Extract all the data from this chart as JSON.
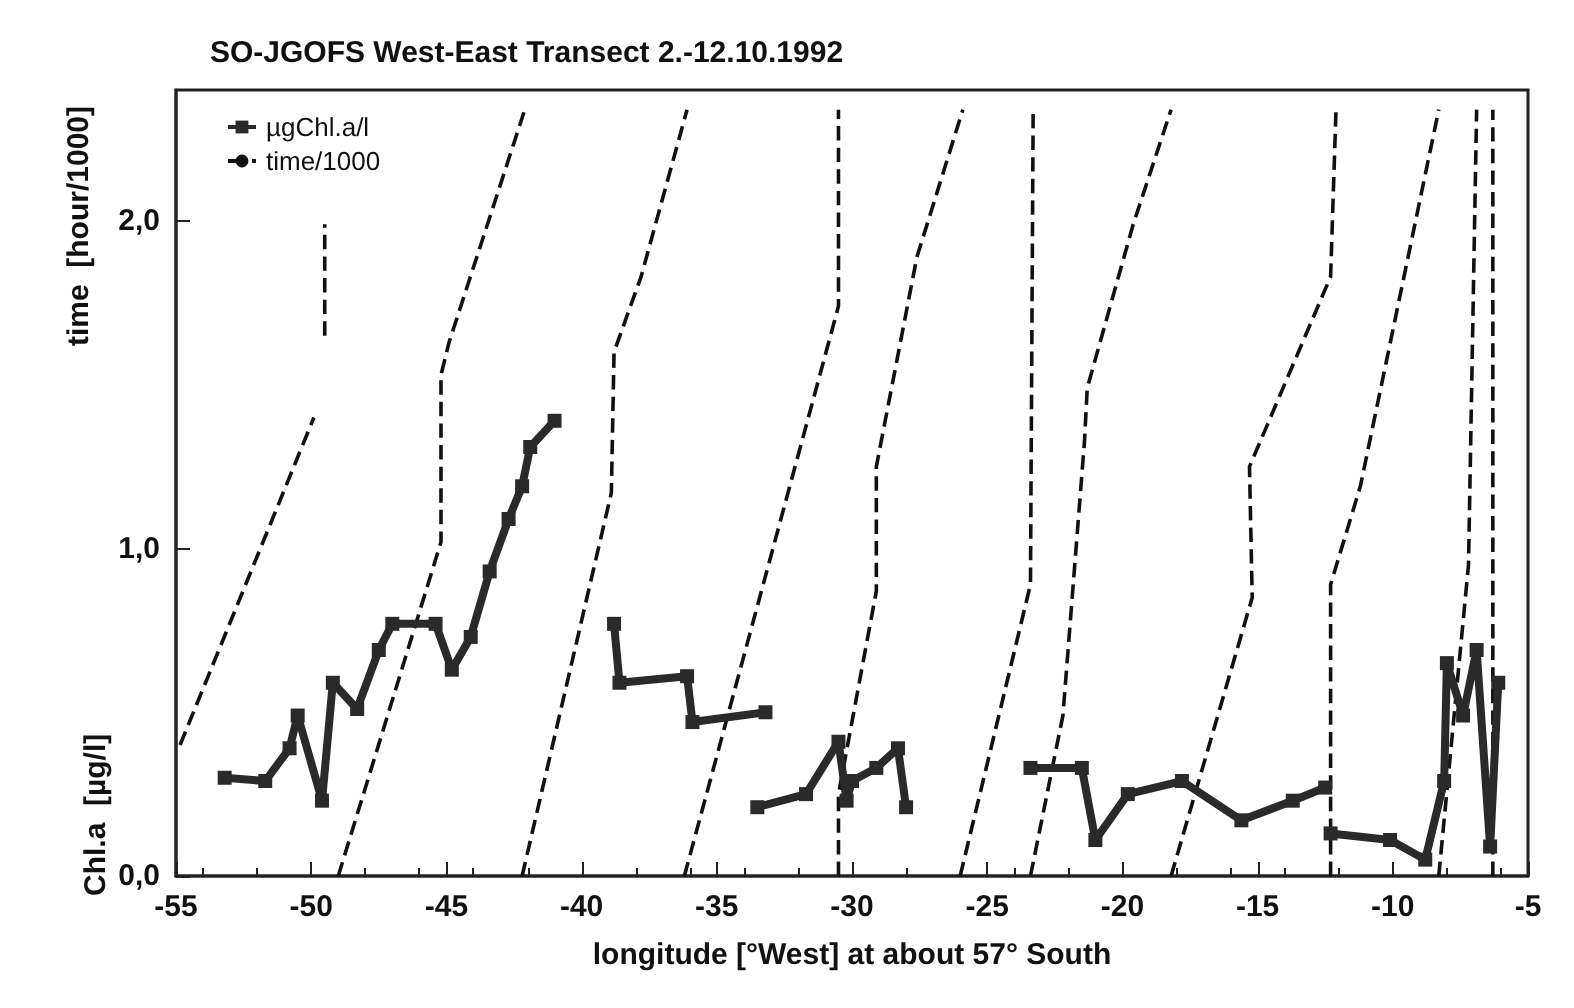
{
  "chart_data": {
    "type": "line",
    "title": "SO-JGOFS West-East Transect 2.-12.10.1992",
    "xlabel": "longitude [°West] at about 57° South",
    "ylabel": "Chl.a  [µg/l]",
    "annotations": [
      "time  [hour/1000]"
    ],
    "xlim": [
      -55,
      -5
    ],
    "xticks": [
      -55,
      -50,
      -45,
      -40,
      -35,
      -30,
      -25,
      -20,
      -15,
      -10,
      -5
    ],
    "ylim": [
      0,
      2.4
    ],
    "yticks": [
      {
        "value": 0,
        "label": "0,0"
      },
      {
        "value": 1,
        "label": "1,0"
      },
      {
        "value": 2,
        "label": "2,0"
      }
    ],
    "grid": false,
    "legend": "top left",
    "series": [
      {
        "name": "µgChl.a/l",
        "marker": "square",
        "line_style": "solid",
        "color": "#2a2a2a",
        "x": [
          -53.2,
          -51.7,
          -50.8,
          -50.5,
          -49.6,
          -49.2,
          -48.3,
          -47.5,
          -47.0,
          -45.4,
          -44.8,
          -44.1,
          -43.4,
          -42.7,
          -42.2,
          -41.9,
          -41.0,
          null,
          -38.8,
          -38.6,
          -36.1,
          -35.9,
          -33.2,
          null,
          -33.5,
          -31.7,
          -30.5,
          -30.2,
          -30.0,
          -29.1,
          -28.3,
          -28.0,
          null,
          -23.4,
          -21.5,
          -21.0,
          -19.8,
          -17.8,
          -15.6,
          -13.7,
          -12.5,
          null,
          -12.3,
          -10.1,
          -8.8,
          -8.1,
          -8.0,
          -7.4,
          -6.9,
          -6.4,
          -6.1
        ],
        "values": [
          0.3,
          0.29,
          0.39,
          0.49,
          0.23,
          0.59,
          0.51,
          0.69,
          0.77,
          0.77,
          0.63,
          0.73,
          0.93,
          1.09,
          1.19,
          1.31,
          1.39,
          null,
          0.77,
          0.59,
          0.61,
          0.47,
          0.5,
          null,
          0.21,
          0.25,
          0.41,
          0.23,
          0.29,
          0.33,
          0.39,
          0.21,
          null,
          0.33,
          0.33,
          0.11,
          0.25,
          0.29,
          0.17,
          0.23,
          0.27,
          null,
          0.13,
          0.11,
          0.05,
          0.29,
          0.65,
          0.49,
          0.69,
          0.09,
          0.59
        ]
      },
      {
        "name": "time/1000",
        "marker": "none",
        "line_style": "dashed",
        "color": "#111111",
        "x": [
          -54.85,
          -49.9,
          null,
          -49.5,
          -49.5,
          null,
          -49.0,
          -45.2,
          -45.2,
          -44.9,
          -42.1,
          null,
          -42.2,
          -38.9,
          -38.8,
          -37.8,
          -36.1,
          null,
          -36.2,
          -30.5,
          -30.5,
          null,
          -30.5,
          -30.5,
          -29.1,
          -29.1,
          -27.6,
          -25.9,
          null,
          -26.0,
          -23.4,
          -23.3,
          null,
          -23.4,
          -22.2,
          -21.4,
          -21.3,
          -19.6,
          -18.2,
          null,
          -18.2,
          -15.2,
          -15.3,
          -12.3,
          -12.1,
          null,
          -12.3,
          -12.3,
          -11.2,
          -8.3,
          null,
          -8.3,
          -7.2,
          -6.9,
          null,
          -6.3,
          -6.3
        ],
        "values": [
          0.4,
          1.4,
          null,
          1.65,
          1.99,
          null,
          0,
          1.02,
          1.53,
          1.63,
          2.34,
          null,
          0,
          1.17,
          1.6,
          1.83,
          2.34,
          null,
          0,
          1.74,
          2.34,
          null,
          0,
          0.25,
          0.87,
          1.25,
          1.89,
          2.34,
          null,
          0,
          0.89,
          2.34,
          null,
          0,
          0.49,
          1.33,
          1.49,
          1.99,
          2.34,
          null,
          0,
          0.85,
          1.25,
          1.83,
          2.34,
          null,
          0,
          0.89,
          1.19,
          2.34,
          null,
          0,
          0.95,
          2.34,
          null,
          0,
          2.34
        ]
      }
    ]
  }
}
